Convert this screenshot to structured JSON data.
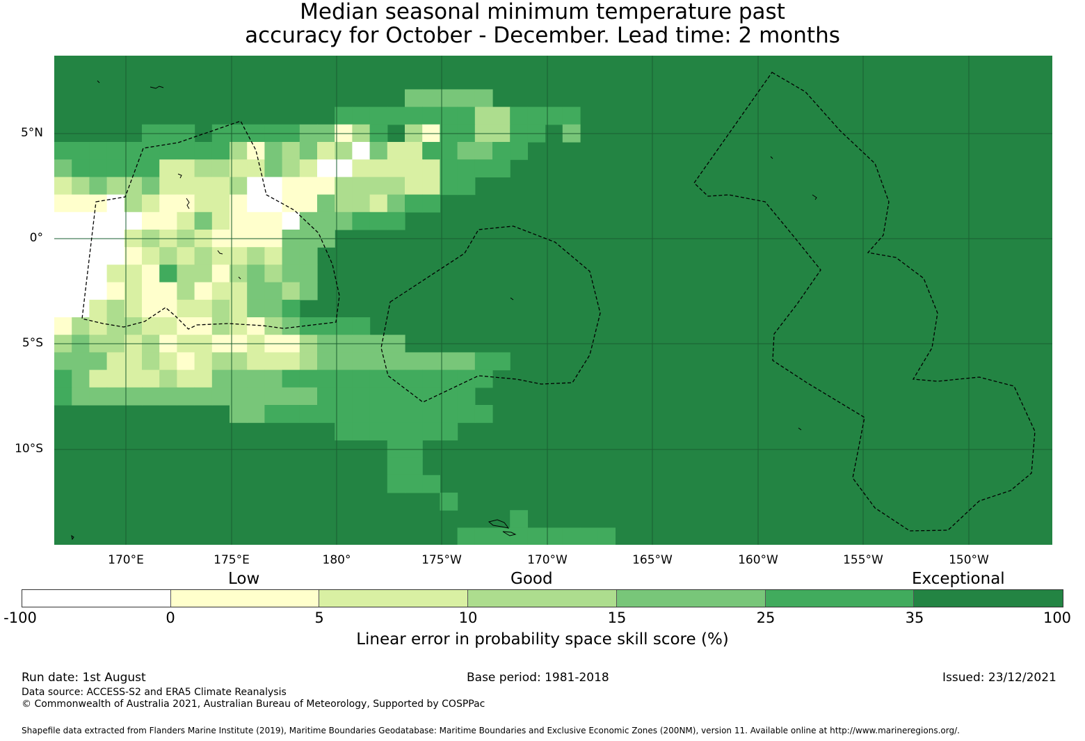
{
  "title_line1": "Median seasonal minimum temperature past",
  "title_line2": "accuracy for October - December. Lead time: 2 months",
  "colors": {
    "lt0": "#ffffff",
    "c0_5": "#ffffcc",
    "c5_10": "#d9f0a3",
    "c10_15": "#addd8e",
    "c15_25": "#78c679",
    "c25_35": "#41ab5d",
    "c35_100": "#238443",
    "gridline": "#1a5e30",
    "eez": "#000000"
  },
  "map": {
    "lat_labels": [
      "5°N",
      "0°",
      "5°S",
      "10°S"
    ],
    "lon_labels": [
      "170°E",
      "175°E",
      "180°",
      "175°W",
      "170°W",
      "165°W",
      "160°W",
      "155°W",
      "150°W"
    ]
  },
  "categories": [
    "Low",
    "Good",
    "Exceptional"
  ],
  "colorbar": {
    "ticks": [
      "-100",
      "0",
      "5",
      "10",
      "15",
      "25",
      "35",
      "100"
    ],
    "label": "Linear error in probability space skill score (%)"
  },
  "footer": {
    "run_date": "Run date: 1st August",
    "base_period": "Base period: 1981-2018",
    "issued": "Issued: 23/12/2021",
    "data_source": "Data source: ACCESS-S2 and ERA5 Climate Reanalysis",
    "copyright": "© Commonwealth of Australia 2021, Australian Bureau of Meteorology, Supported by COSPPac",
    "shapefile": "Shapefile data extracted from Flanders Marine Institute (2019), Maritime Boundaries Geodatabase: Maritime Boundaries and Exclusive Economic Zones (200NM), version 11. Available online at http://www.marineregions.org/."
  }
}
